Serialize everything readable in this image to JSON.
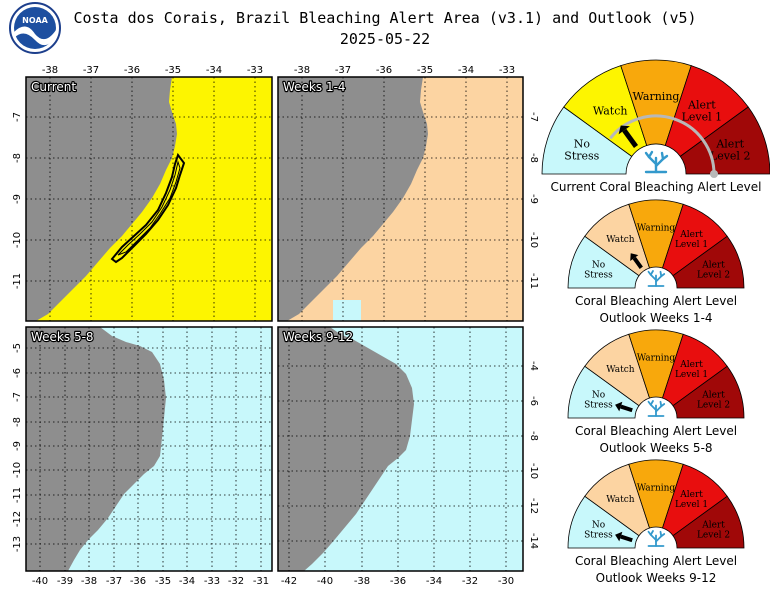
{
  "header": {
    "title": "Costa dos Corais, Brazil Bleaching Alert Area (v3.1) and Outlook (v5)",
    "date": "2025-05-22",
    "logo_text": "NOAA"
  },
  "colors": {
    "no_stress": "#c8f8fb",
    "watch": "#fdf500",
    "outlook_watch": "#fcd4a2",
    "warning": "#f8a80c",
    "alert1": "#e80e0e",
    "alert2": "#a00808",
    "land": "#8e8e8e",
    "coral": "#3399cc"
  },
  "maps": [
    {
      "label": "Current",
      "level": "watch",
      "x_ticks": [
        "-38",
        "-37",
        "-36",
        "-35",
        "-34",
        "-33"
      ],
      "y_ticks": [
        "-7",
        "-8",
        "-9",
        "-10",
        "-11"
      ]
    },
    {
      "label": "Weeks 1-4",
      "level": "watch",
      "x_ticks": [
        "-38",
        "-37",
        "-36",
        "-35",
        "-34",
        "-33"
      ],
      "y_ticks": [
        "-7",
        "-8",
        "-9",
        "-10",
        "-11"
      ]
    },
    {
      "label": "Weeks 5-8",
      "level": "no_stress",
      "x_ticks": [
        "-40",
        "-39",
        "-38",
        "-37",
        "-36",
        "-35",
        "-34",
        "-33",
        "-32",
        "-31"
      ],
      "y_ticks": [
        "-5",
        "-6",
        "-7",
        "-8",
        "-9",
        "-10",
        "-11",
        "-12",
        "-13"
      ]
    },
    {
      "label": "Weeks 9-12",
      "level": "no_stress",
      "x_ticks": [
        "-42",
        "-40",
        "-38",
        "-36",
        "-34",
        "-32",
        "-30"
      ],
      "y_ticks": [
        "-4",
        "-6",
        "-8",
        "-10",
        "-12",
        "-14"
      ]
    }
  ],
  "gauges": [
    {
      "caption": "Current Coral Bleaching Alert Level",
      "caption2": "",
      "level": "watch",
      "labels": {
        "no_stress": "No Stress",
        "watch": "Watch",
        "warning": "Warning",
        "alert1": "Alert Level 1",
        "alert2": "Alert Level 2"
      }
    },
    {
      "caption": "Coral Bleaching Alert Level",
      "caption2": "Outlook Weeks 1-4",
      "level": "watch",
      "labels": {
        "no_stress": "No Stress",
        "watch": "Watch",
        "warning": "Warning",
        "alert1": "Alert Level 1",
        "alert2": "Alert Level 2"
      }
    },
    {
      "caption": "Coral Bleaching Alert Level",
      "caption2": "Outlook Weeks 5-8",
      "level": "no_stress",
      "labels": {
        "no_stress": "No Stress",
        "watch": "Watch",
        "warning": "Warning",
        "alert1": "Alert Level 1",
        "alert2": "Alert Level 2"
      }
    },
    {
      "caption": "Coral Bleaching Alert Level",
      "caption2": "Outlook Weeks 9-12",
      "level": "no_stress",
      "labels": {
        "no_stress": "No Stress",
        "watch": "Watch",
        "warning": "Warning",
        "alert1": "Alert Level 1",
        "alert2": "Alert Level 2"
      }
    }
  ]
}
